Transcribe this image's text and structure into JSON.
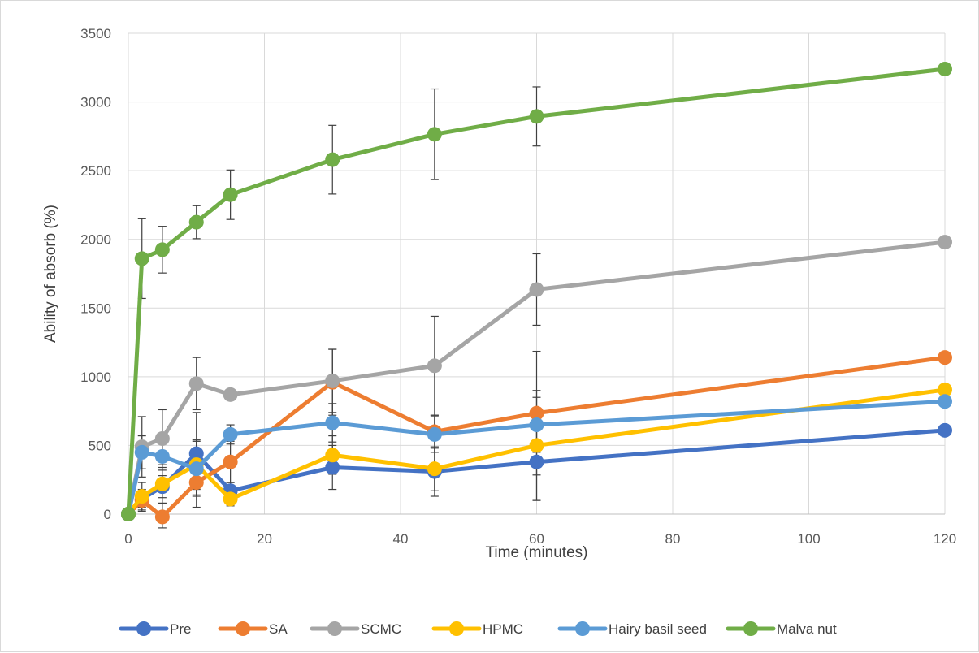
{
  "chart_data": {
    "type": "line",
    "title": "",
    "xlabel": "Time (minutes)",
    "ylabel": "Ability of absorb (%)",
    "xlim": [
      0,
      120
    ],
    "ylim": [
      0,
      3500
    ],
    "x_ticks": [
      0,
      20,
      40,
      60,
      80,
      100,
      120
    ],
    "y_ticks": [
      0,
      500,
      1000,
      1500,
      2000,
      2500,
      3000,
      3500
    ],
    "grid": true,
    "legend_position": "bottom",
    "x": [
      0,
      2,
      5,
      10,
      15,
      30,
      45,
      60,
      120
    ],
    "series": [
      {
        "name": "Pre",
        "color": "#4472C4",
        "values": [
          0,
          110,
          200,
          440,
          170,
          340,
          310,
          380,
          610
        ],
        "error": [
          0,
          60,
          80,
          300,
          60,
          160,
          180,
          280,
          0
        ]
      },
      {
        "name": "SA",
        "color": "#ED7D31",
        "values": [
          0,
          100,
          -20,
          230,
          380,
          960,
          600,
          735,
          1140
        ],
        "error": [
          0,
          80,
          100,
          180,
          150,
          240,
          120,
          450,
          0
        ]
      },
      {
        "name": "SCMC",
        "color": "#A5A5A5",
        "values": [
          0,
          490,
          550,
          950,
          870,
          970,
          1080,
          1635,
          1980
        ],
        "error": [
          0,
          220,
          210,
          190,
          0,
          230,
          360,
          260,
          0
        ]
      },
      {
        "name": "HPMC",
        "color": "#FFC000",
        "values": [
          0,
          130,
          220,
          360,
          110,
          430,
          330,
          500,
          905
        ],
        "error": [
          0,
          100,
          140,
          180,
          50,
          140,
          160,
          400,
          0
        ]
      },
      {
        "name": "Hairy basil seed",
        "color": "#5B9BD5",
        "values": [
          0,
          450,
          420,
          330,
          580,
          665,
          580,
          650,
          820
        ],
        "error": [
          0,
          120,
          100,
          200,
          70,
          140,
          130,
          200,
          0
        ]
      },
      {
        "name": "Malva nut",
        "color": "#70AD47",
        "values": [
          0,
          1860,
          1925,
          2125,
          2325,
          2580,
          2765,
          2895,
          3240
        ],
        "error": [
          0,
          290,
          170,
          120,
          180,
          250,
          330,
          215,
          0
        ]
      }
    ]
  }
}
